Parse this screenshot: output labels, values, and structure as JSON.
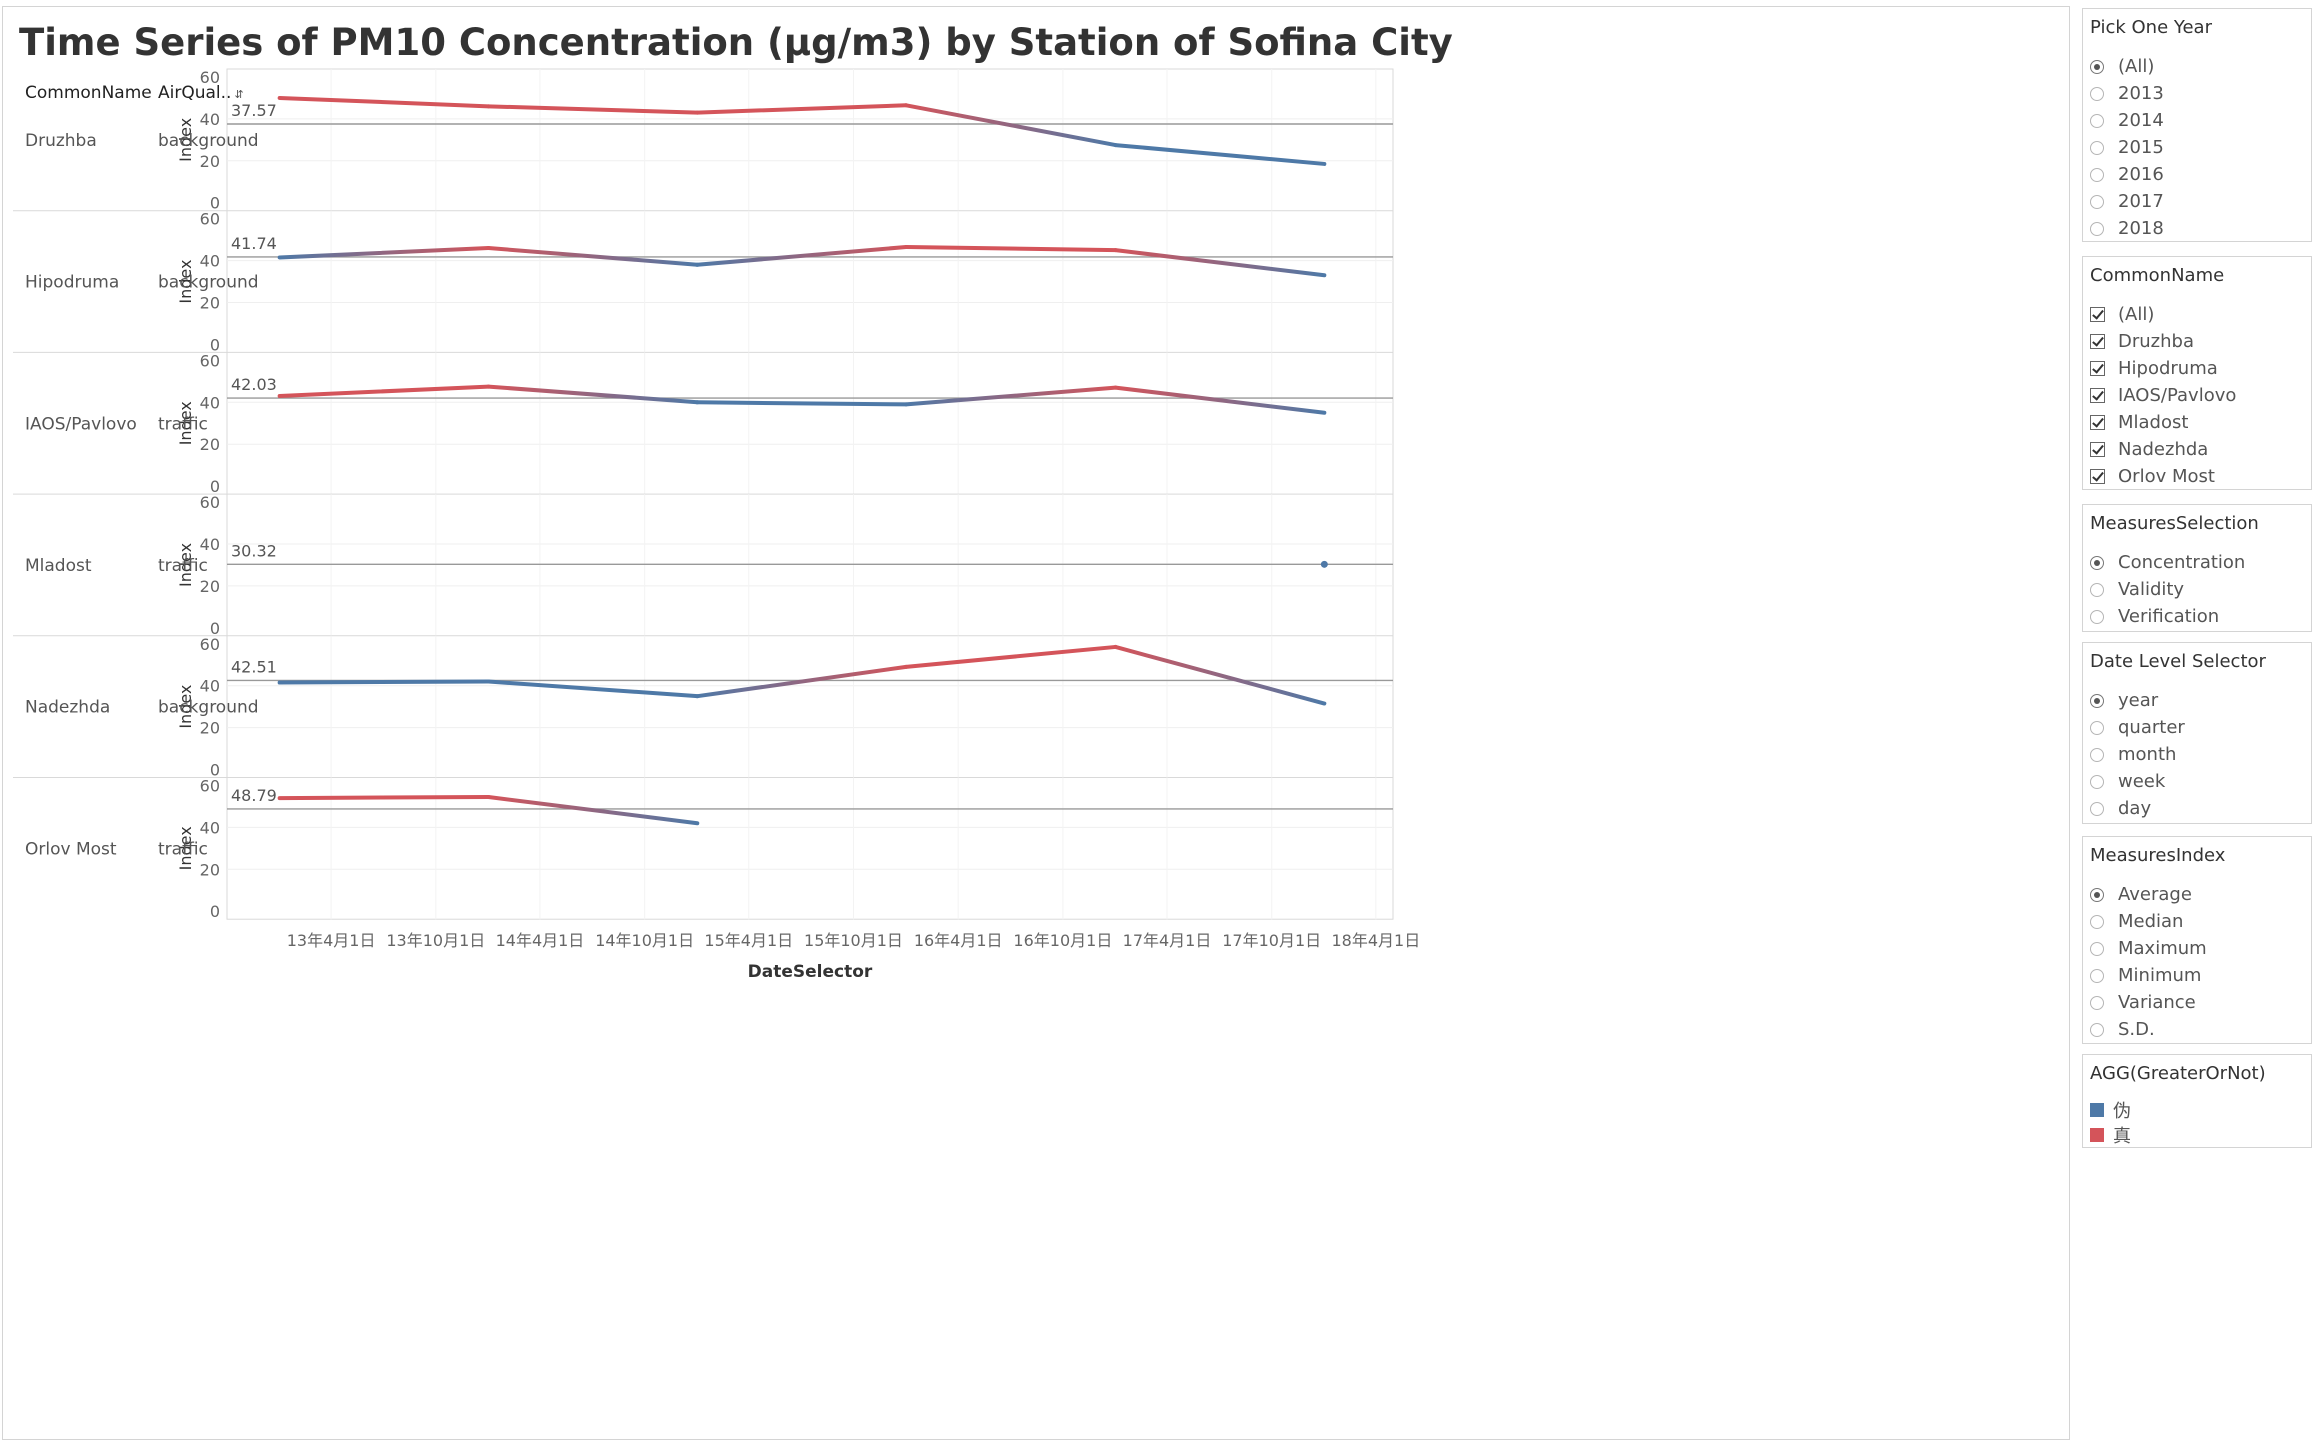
{
  "title": "Time Series of PM10 Concentration (µg/m3) by Station of Sofina City",
  "column_headers": {
    "common_name": "CommonName",
    "air_quality": "AirQual.."
  },
  "colors": {
    "false_series": "#4e79a7",
    "true_series": "#d4545a",
    "reference_line": "#999999"
  },
  "chart_data": {
    "type": "line",
    "title": "Time Series of PM10 Concentration (µg/m3) by Station of Sofina City",
    "xlabel": "DateSelector",
    "ylabel": "Index",
    "ylim": [
      0,
      60
    ],
    "yticks": [
      0,
      20,
      40,
      60
    ],
    "xlim": [
      "2012-10-01",
      "2018-05-01"
    ],
    "x_ticks": [
      {
        "date": "2013-04-01",
        "label": "13年4月1日"
      },
      {
        "date": "2013-10-01",
        "label": "13年10月1日"
      },
      {
        "date": "2014-04-01",
        "label": "14年4月1日"
      },
      {
        "date": "2014-10-01",
        "label": "14年10月1日"
      },
      {
        "date": "2015-04-01",
        "label": "15年4月1日"
      },
      {
        "date": "2015-10-01",
        "label": "15年10月1日"
      },
      {
        "date": "2016-04-01",
        "label": "16年4月1日"
      },
      {
        "date": "2016-10-01",
        "label": "16年10月1日"
      },
      {
        "date": "2017-04-01",
        "label": "17年4月1日"
      },
      {
        "date": "2017-10-01",
        "label": "17年10月1日"
      },
      {
        "date": "2018-04-01",
        "label": "18年4月1日"
      }
    ],
    "grid": true,
    "legend": {
      "title": "AGG(GreaterOrNot)",
      "placement": "right",
      "entries": [
        {
          "label": "伪",
          "color": "#4e79a7"
        },
        {
          "label": "真",
          "color": "#d4545a"
        }
      ]
    },
    "dates": [
      "2013-01-01",
      "2014-01-01",
      "2015-01-01",
      "2016-01-01",
      "2017-01-01",
      "2018-01-01"
    ],
    "series": [
      {
        "name": "Druzhba",
        "air_quality": "background",
        "reference": 37.57,
        "reference_label": "37.57",
        "values": [
          50,
          46,
          43,
          46.5,
          27.5,
          18.5
        ]
      },
      {
        "name": "Hipodruma",
        "air_quality": "background",
        "reference": 41.74,
        "reference_label": "41.74",
        "values": [
          41.5,
          46,
          38,
          46.5,
          45,
          33
        ]
      },
      {
        "name": "IAOS/Pavlovo",
        "air_quality": "traffic",
        "reference": 42.03,
        "reference_label": "42.03",
        "values": [
          43,
          47.5,
          40,
          39,
          47,
          35
        ]
      },
      {
        "name": "Mladost",
        "air_quality": "traffic",
        "reference": 30.32,
        "reference_label": "30.32",
        "values": [
          null,
          null,
          null,
          null,
          null,
          30.3
        ]
      },
      {
        "name": "Nadezhda",
        "air_quality": "background",
        "reference": 42.51,
        "reference_label": "42.51",
        "values": [
          41.5,
          42,
          35,
          49,
          58.5,
          31.5
        ]
      },
      {
        "name": "Orlov Most",
        "air_quality": "traffic",
        "reference": 48.79,
        "reference_label": "48.79",
        "values": [
          54,
          54.5,
          42,
          null,
          null,
          null
        ]
      }
    ]
  },
  "filters": {
    "pick_one_year": {
      "title": "Pick One Year",
      "options": [
        {
          "label": "(All)",
          "selected": true
        },
        {
          "label": "2013",
          "selected": false
        },
        {
          "label": "2014",
          "selected": false
        },
        {
          "label": "2015",
          "selected": false
        },
        {
          "label": "2016",
          "selected": false
        },
        {
          "label": "2017",
          "selected": false
        },
        {
          "label": "2018",
          "selected": false
        }
      ]
    },
    "common_name": {
      "title": "CommonName",
      "options": [
        {
          "label": "(All)",
          "checked": true
        },
        {
          "label": "Druzhba",
          "checked": true
        },
        {
          "label": "Hipodruma",
          "checked": true
        },
        {
          "label": "IAOS/Pavlovo",
          "checked": true
        },
        {
          "label": "Mladost",
          "checked": true
        },
        {
          "label": "Nadezhda",
          "checked": true
        },
        {
          "label": "Orlov Most",
          "checked": true
        }
      ]
    },
    "measures_selection": {
      "title": "MeasuresSelection",
      "options": [
        {
          "label": "Concentration",
          "selected": true
        },
        {
          "label": "Validity",
          "selected": false
        },
        {
          "label": "Verification",
          "selected": false
        }
      ]
    },
    "date_level_selector": {
      "title": "Date Level Selector",
      "options": [
        {
          "label": "year",
          "selected": true
        },
        {
          "label": "quarter",
          "selected": false
        },
        {
          "label": "month",
          "selected": false
        },
        {
          "label": "week",
          "selected": false
        },
        {
          "label": "day",
          "selected": false
        }
      ]
    },
    "measures_index": {
      "title": "MeasuresIndex",
      "options": [
        {
          "label": "Average",
          "selected": true
        },
        {
          "label": "Median",
          "selected": false
        },
        {
          "label": "Maximum",
          "selected": false
        },
        {
          "label": "Minimum",
          "selected": false
        },
        {
          "label": "Variance",
          "selected": false
        },
        {
          "label": "S.D.",
          "selected": false
        }
      ]
    }
  }
}
